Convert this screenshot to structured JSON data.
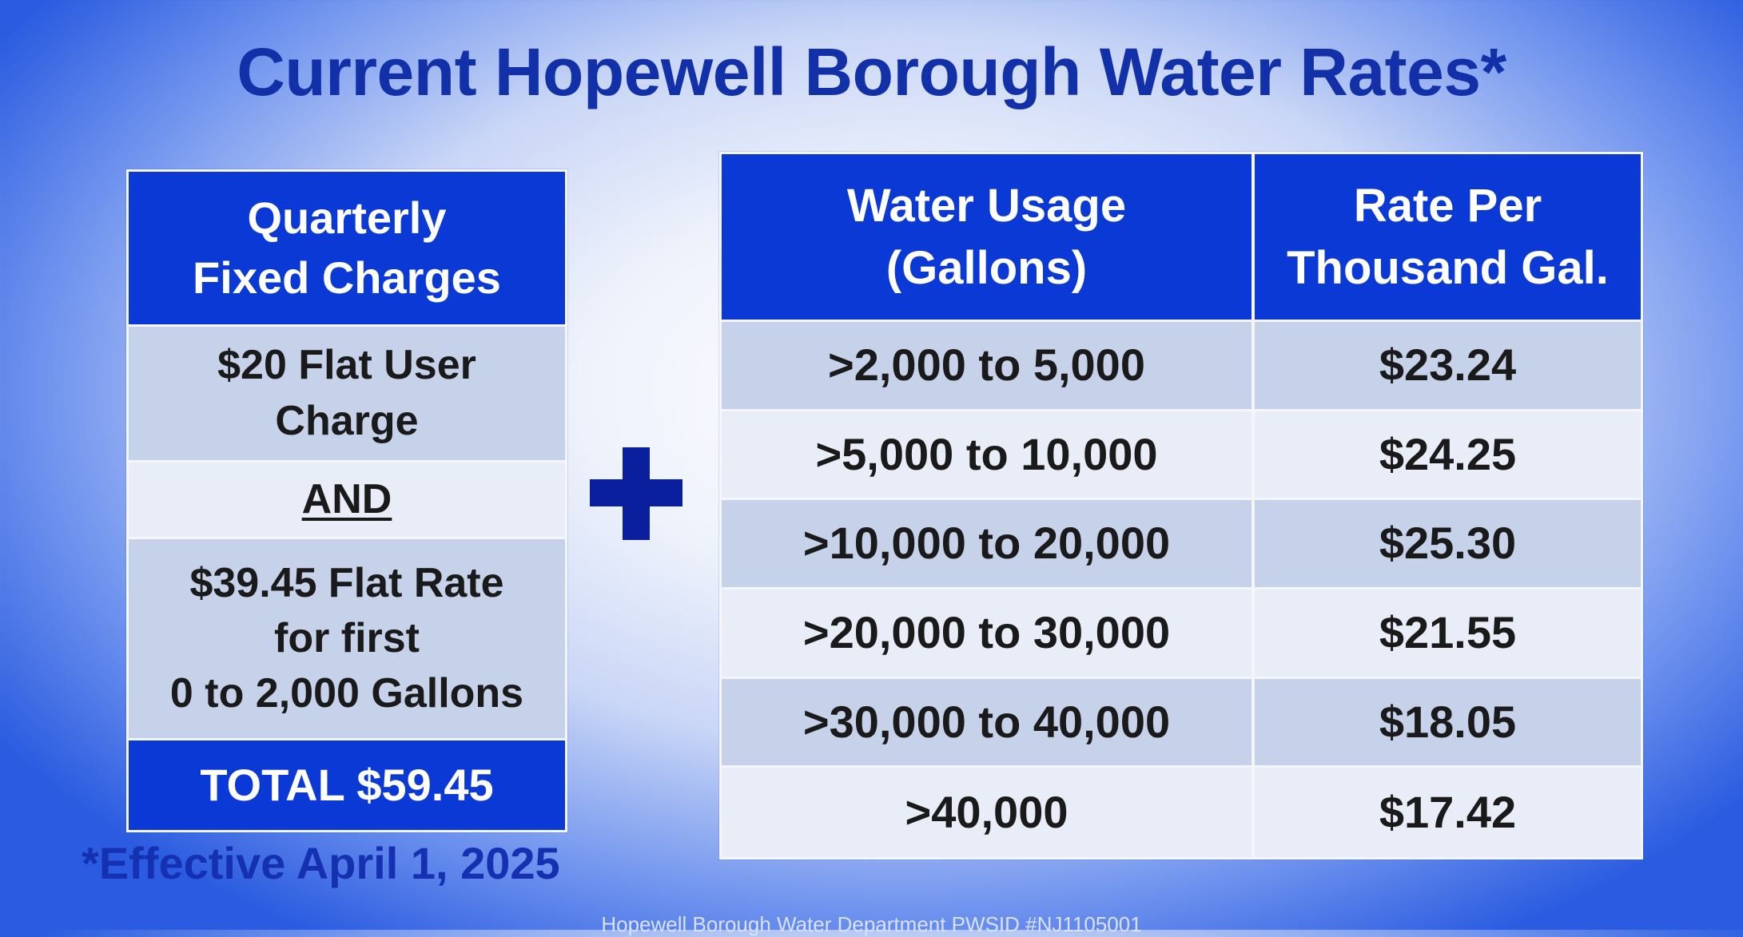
{
  "title": "Current Hopewell Borough Water Rates*",
  "fixed_charges": {
    "header": [
      "Quarterly",
      "Fixed Charges"
    ],
    "rows": [
      {
        "lines": [
          "$20 Flat User",
          "Charge"
        ]
      },
      {
        "lines": [
          "AND"
        ]
      },
      {
        "lines": [
          "$39.45 Flat Rate",
          "for first",
          "0 to 2,000 Gallons"
        ]
      }
    ],
    "total": "TOTAL $59.45"
  },
  "plus_symbol": "+",
  "rates": {
    "headers": [
      [
        "Water Usage",
        "(Gallons)"
      ],
      [
        "Rate Per",
        "Thousand Gal."
      ]
    ],
    "rows": [
      {
        "usage": ">2,000 to 5,000",
        "rate": "$23.24"
      },
      {
        "usage": ">5,000 to 10,000",
        "rate": "$24.25"
      },
      {
        "usage": ">10,000 to 20,000",
        "rate": "$25.30"
      },
      {
        "usage": ">20,000 to 30,000",
        "rate": "$21.55"
      },
      {
        "usage": ">30,000 to 40,000",
        "rate": "$18.05"
      },
      {
        "usage": ">40,000",
        "rate": "$17.42"
      }
    ]
  },
  "footnote": "*Effective April 1, 2025",
  "footer": "Hopewell Borough Water Department PWSID #NJ1105001",
  "colors": {
    "header_blue": "#0b39d6",
    "title_blue": "#1230a8",
    "row_shade": "#c6d1ea",
    "row_light": "#e8edf7"
  }
}
